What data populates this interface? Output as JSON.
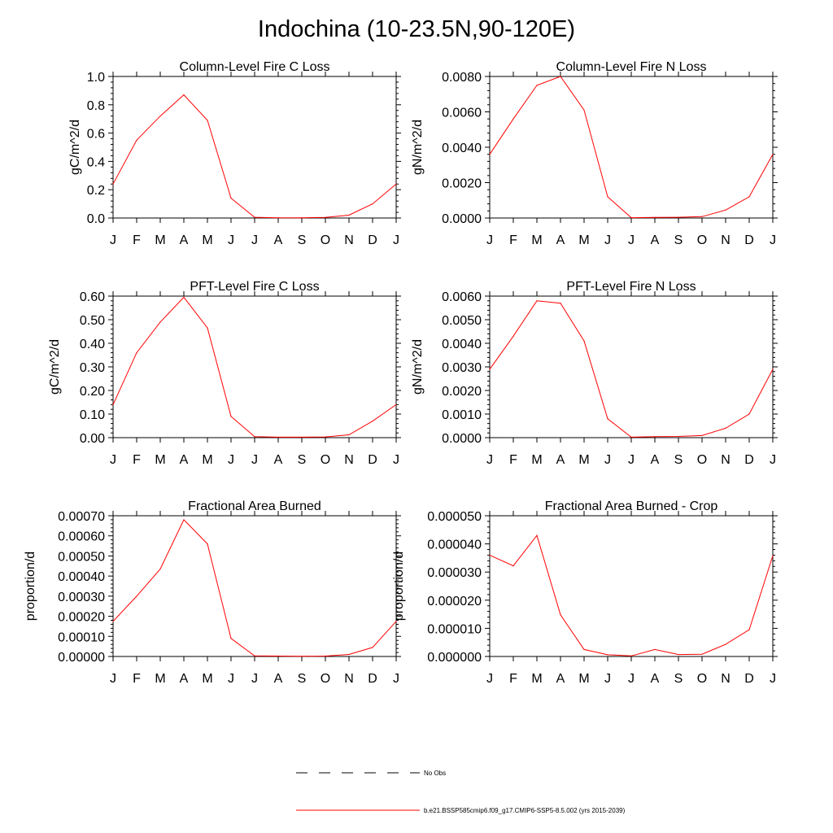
{
  "page": {
    "title": "Indochina (10-23.5N,90-120E)"
  },
  "colors": {
    "series": "#ff0000",
    "axis": "#000000"
  },
  "legend": {
    "items": [
      {
        "label": "No Obs",
        "style": "dashed",
        "color": "#000000"
      },
      {
        "label": "b.e21.BSSP585cmip6.f09_g17.CMIP6-SSP5-8.5.002 (yrs 2015-2039)",
        "style": "solid",
        "color": "#ff0000"
      }
    ]
  },
  "chart_data": [
    {
      "type": "line",
      "title": "Column-Level Fire C Loss",
      "ylabel": "gC/m^2/d",
      "categories": [
        "J",
        "F",
        "M",
        "A",
        "M",
        "J",
        "J",
        "A",
        "S",
        "O",
        "N",
        "D",
        "J"
      ],
      "ylim": [
        0,
        1.0
      ],
      "yticks": [
        0.0,
        0.2,
        0.4,
        0.6,
        0.8,
        1.0
      ],
      "ytick_labels": [
        "0.0",
        "0.2",
        "0.4",
        "0.6",
        "0.8",
        "1.0"
      ],
      "series": [
        {
          "values": [
            0.24,
            0.55,
            0.72,
            0.87,
            0.69,
            0.14,
            0.005,
            0.002,
            0.002,
            0.004,
            0.02,
            0.1,
            0.24
          ]
        }
      ]
    },
    {
      "type": "line",
      "title": "Column-Level Fire N Loss",
      "ylabel": "gN/m^2/d",
      "categories": [
        "J",
        "F",
        "M",
        "A",
        "M",
        "J",
        "J",
        "A",
        "S",
        "O",
        "N",
        "D",
        "J"
      ],
      "ylim": [
        0,
        0.008
      ],
      "yticks": [
        0,
        0.002,
        0.004,
        0.006,
        0.008
      ],
      "ytick_labels": [
        "0.0000",
        "0.0020",
        "0.0040",
        "0.0060",
        "0.0080"
      ],
      "series": [
        {
          "values": [
            0.0036,
            0.0056,
            0.0075,
            0.008,
            0.0061,
            0.0012,
            2e-05,
            3e-05,
            4e-05,
            8e-05,
            0.00045,
            0.0012,
            0.0036
          ]
        }
      ]
    },
    {
      "type": "line",
      "title": "PFT-Level Fire C Loss",
      "ylabel": "gC/m^2/d",
      "categories": [
        "J",
        "F",
        "M",
        "A",
        "M",
        "J",
        "J",
        "A",
        "S",
        "O",
        "N",
        "D",
        "J"
      ],
      "ylim": [
        0,
        0.6
      ],
      "yticks": [
        0,
        0.1,
        0.2,
        0.3,
        0.4,
        0.5,
        0.6
      ],
      "ytick_labels": [
        "0.00",
        "0.10",
        "0.20",
        "0.30",
        "0.40",
        "0.50",
        "0.60"
      ],
      "series": [
        {
          "values": [
            0.14,
            0.36,
            0.49,
            0.595,
            0.465,
            0.09,
            0.004,
            0.002,
            0.002,
            0.003,
            0.012,
            0.07,
            0.14
          ]
        }
      ]
    },
    {
      "type": "line",
      "title": "PFT-Level Fire N Loss",
      "ylabel": "gN/m^2/d",
      "categories": [
        "J",
        "F",
        "M",
        "A",
        "M",
        "J",
        "J",
        "A",
        "S",
        "O",
        "N",
        "D",
        "J"
      ],
      "ylim": [
        0,
        0.006
      ],
      "yticks": [
        0,
        0.001,
        0.002,
        0.003,
        0.004,
        0.005,
        0.006
      ],
      "ytick_labels": [
        "0.0000",
        "0.0010",
        "0.0020",
        "0.0030",
        "0.0040",
        "0.0050",
        "0.0060"
      ],
      "series": [
        {
          "values": [
            0.0029,
            0.0043,
            0.0058,
            0.0057,
            0.0041,
            0.0008,
            2e-05,
            4e-05,
            5e-05,
            9e-05,
            0.0004,
            0.001,
            0.0029
          ]
        }
      ]
    },
    {
      "type": "line",
      "title": "Fractional Area Burned",
      "ylabel": "proportion/d",
      "categories": [
        "J",
        "F",
        "M",
        "A",
        "M",
        "J",
        "J",
        "A",
        "S",
        "O",
        "N",
        "D",
        "J"
      ],
      "ylim": [
        0,
        0.0007
      ],
      "yticks": [
        0,
        0.0001,
        0.0002,
        0.0003,
        0.0004,
        0.0005,
        0.0006,
        0.0007
      ],
      "ytick_labels": [
        "0.00000",
        "0.00010",
        "0.00020",
        "0.00030",
        "0.00040",
        "0.00050",
        "0.00060",
        "0.00070"
      ],
      "series": [
        {
          "values": [
            0.000175,
            0.0003,
            0.000435,
            0.00068,
            0.00056,
            9e-05,
            3e-06,
            2e-06,
            1e-06,
            2e-06,
            1e-05,
            4.5e-05,
            0.000175
          ]
        }
      ]
    },
    {
      "type": "line",
      "title": "Fractional Area Burned - Crop",
      "ylabel": "proportion/d",
      "categories": [
        "J",
        "F",
        "M",
        "A",
        "M",
        "J",
        "J",
        "A",
        "S",
        "O",
        "N",
        "D",
        "J"
      ],
      "ylim": [
        0,
        5e-05
      ],
      "yticks": [
        0,
        1e-05,
        2e-05,
        3e-05,
        4e-05,
        5e-05
      ],
      "ytick_labels": [
        "0.000000",
        "0.000010",
        "0.000020",
        "0.000030",
        "0.000040",
        "0.000050"
      ],
      "series": [
        {
          "values": [
            3.6e-05,
            3.22e-05,
            4.3e-05,
            1.48e-05,
            2.5e-06,
            6e-07,
            2e-07,
            2.5e-06,
            7e-07,
            8e-07,
            4.3e-06,
            9.5e-06,
            3.58e-05
          ]
        }
      ]
    }
  ]
}
